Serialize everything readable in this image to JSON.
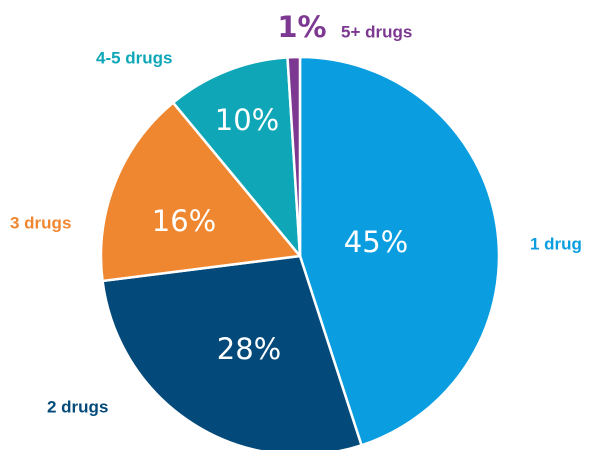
{
  "chart_data": {
    "type": "pie",
    "slices": [
      {
        "label": "1 drug",
        "value": 45,
        "value_text": "45%",
        "color": "#0a9ee0"
      },
      {
        "label": "2 drugs",
        "value": 28,
        "value_text": "28%",
        "color": "#034a7b"
      },
      {
        "label": "3 drugs",
        "value": 16,
        "value_text": "16%",
        "color": "#ef8731"
      },
      {
        "label": "4-5 drugs",
        "value": 10,
        "value_text": "10%",
        "color": "#0fa7b7"
      },
      {
        "label": "5+ drugs",
        "value": 1,
        "value_text": "1%",
        "color": "#7d3991"
      }
    ],
    "start_position": "12 o'clock",
    "direction": "clockwise",
    "labels_outside": true
  }
}
